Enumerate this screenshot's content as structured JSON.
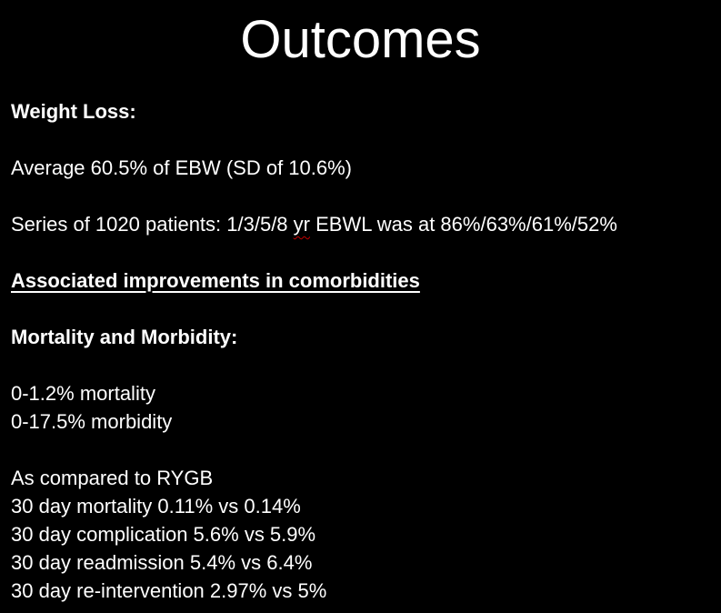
{
  "slide": {
    "title": "Outcomes",
    "colors": {
      "background": "#000000",
      "text": "#ffffff",
      "spellcheck_underline": "#c00000"
    },
    "lines": [
      {
        "bold": true,
        "underline": false,
        "runs": [
          {
            "text": "Weight Loss:"
          }
        ]
      },
      {
        "bold": false,
        "underline": false,
        "runs": []
      },
      {
        "bold": false,
        "underline": false,
        "runs": [
          {
            "text": "Average 60.5% of EBW (SD of 10.6%)"
          }
        ]
      },
      {
        "bold": false,
        "underline": false,
        "runs": []
      },
      {
        "bold": false,
        "underline": false,
        "runs": [
          {
            "text": "Series of 1020 patients: 1/3/5/8 "
          },
          {
            "text": "yr",
            "wavy": true
          },
          {
            "text": " EBWL was at 86%/63%/61%/52%"
          }
        ]
      },
      {
        "bold": false,
        "underline": false,
        "runs": []
      },
      {
        "bold": true,
        "underline": true,
        "runs": [
          {
            "text": "Associated improvements in comorbidities"
          }
        ]
      },
      {
        "bold": false,
        "underline": false,
        "runs": []
      },
      {
        "bold": true,
        "underline": false,
        "runs": [
          {
            "text": "Mortality and Morbidity:"
          }
        ]
      },
      {
        "bold": false,
        "underline": false,
        "runs": []
      },
      {
        "bold": false,
        "underline": false,
        "runs": [
          {
            "text": "0-1.2% mortality"
          }
        ]
      },
      {
        "bold": false,
        "underline": false,
        "runs": [
          {
            "text": "0-17.5% morbidity"
          }
        ]
      },
      {
        "bold": false,
        "underline": false,
        "runs": []
      },
      {
        "bold": false,
        "underline": false,
        "runs": [
          {
            "text": "As compared to RYGB"
          }
        ]
      },
      {
        "bold": false,
        "underline": false,
        "runs": [
          {
            "text": "30 day mortality 0.11% vs 0.14%"
          }
        ]
      },
      {
        "bold": false,
        "underline": false,
        "runs": [
          {
            "text": "30 day complication 5.6% vs 5.9%"
          }
        ]
      },
      {
        "bold": false,
        "underline": false,
        "runs": [
          {
            "text": "30 day readmission 5.4% vs 6.4%"
          }
        ]
      },
      {
        "bold": false,
        "underline": false,
        "runs": [
          {
            "text": "30 day re-intervention 2.97% vs 5%"
          }
        ]
      }
    ]
  }
}
